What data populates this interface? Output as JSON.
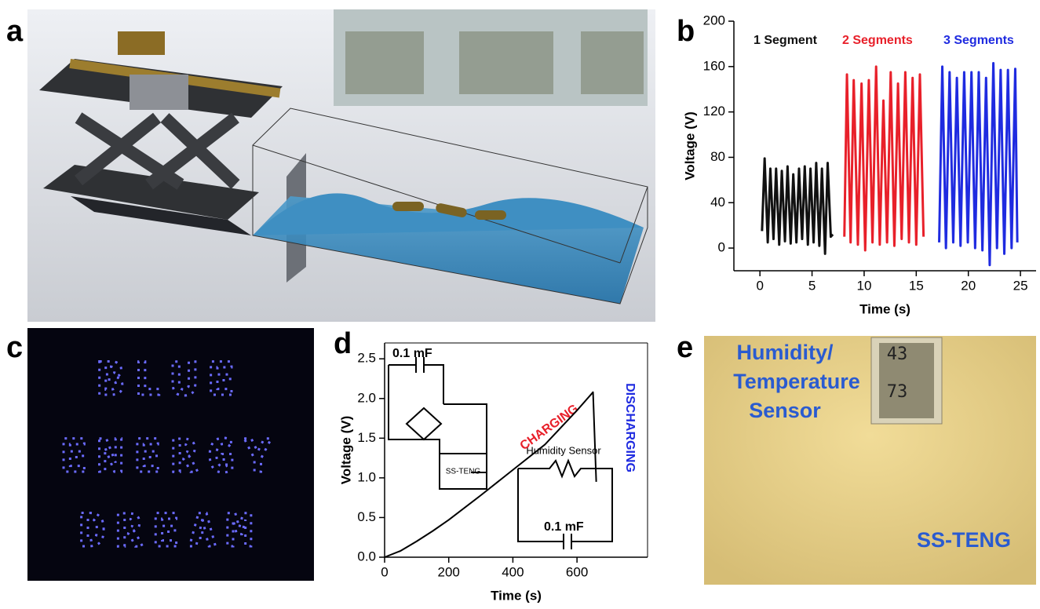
{
  "panel_labels": [
    "a",
    "b",
    "c",
    "d",
    "e"
  ],
  "panel_c": {
    "lines": [
      "BLUE",
      "ENERGY",
      "DREAM"
    ]
  },
  "panel_e": {
    "sensor_label": [
      "Humidity/",
      "Temperature",
      "Sensor"
    ],
    "teng_label": "SS-TENG",
    "display": [
      "43",
      "73"
    ]
  },
  "chart_data": [
    {
      "type": "line",
      "xlabel": "Time (s)",
      "ylabel": "Voltage (V)",
      "annotations": [
        "1 Segment",
        "2 Segments",
        "3 Segments"
      ],
      "xlim": [
        -2.5,
        26.5
      ],
      "ylim": [
        -20,
        200
      ],
      "xticks": [
        0,
        5,
        10,
        15,
        20,
        25
      ],
      "yticks": [
        0,
        40,
        80,
        120,
        160,
        200
      ],
      "series": [
        {
          "name": "1 Segment",
          "color": "#111111",
          "x": [
            0.2,
            0.45,
            0.75,
            1.0,
            1.3,
            1.55,
            1.85,
            2.1,
            2.4,
            2.65,
            2.95,
            3.2,
            3.5,
            3.75,
            4.05,
            4.3,
            4.6,
            4.85,
            5.15,
            5.4,
            5.7,
            5.95,
            6.25,
            6.5,
            6.8,
            7.0
          ],
          "values": [
            15,
            79,
            5,
            70,
            8,
            70,
            3,
            68,
            6,
            72,
            4,
            65,
            5,
            70,
            8,
            72,
            3,
            70,
            5,
            75,
            2,
            70,
            -5,
            75,
            10,
            12
          ]
        },
        {
          "name": "2 Segments",
          "color": "#e8202a",
          "x": [
            8.1,
            8.35,
            8.7,
            9.0,
            9.4,
            9.75,
            10.1,
            10.45,
            10.8,
            11.15,
            11.5,
            11.85,
            12.2,
            12.55,
            12.9,
            13.25,
            13.6,
            13.95,
            14.3,
            14.65,
            15.0,
            15.35,
            15.7
          ],
          "values": [
            10,
            153,
            5,
            148,
            3,
            145,
            -2,
            148,
            5,
            160,
            3,
            130,
            5,
            155,
            2,
            145,
            8,
            155,
            5,
            150,
            3,
            153,
            10
          ]
        },
        {
          "name": "3 Segments",
          "color": "#1f2be0",
          "x": [
            17.2,
            17.5,
            17.85,
            18.2,
            18.55,
            18.9,
            19.25,
            19.6,
            19.95,
            20.3,
            20.65,
            21.0,
            21.35,
            21.7,
            22.05,
            22.4,
            22.75,
            23.1,
            23.45,
            23.8,
            24.15,
            24.5,
            24.7
          ],
          "values": [
            5,
            160,
            0,
            155,
            5,
            150,
            2,
            155,
            5,
            155,
            0,
            155,
            -2,
            150,
            -15,
            163,
            0,
            157,
            -5,
            157,
            0,
            158,
            5
          ]
        }
      ]
    },
    {
      "type": "line",
      "xlabel": "Time (s)",
      "ylabel": "Voltage (V)",
      "annotations": [
        "CHARGING",
        "DISCHARGING",
        "Humidity Sensor",
        "0.1 mF",
        "0.1 mF",
        "SS-TENG"
      ],
      "xlim": [
        0,
        820
      ],
      "ylim": [
        0,
        2.7
      ],
      "xticks": [
        0,
        200,
        400,
        600
      ],
      "yticks": [
        {
          "value": 0,
          "label": "0.0"
        },
        0.5,
        {
          "value": 1,
          "label": "1.0"
        },
        1.5,
        {
          "value": 2,
          "label": "2.0"
        },
        2.5
      ],
      "series": [
        {
          "name": "Voltage",
          "color": "#000000",
          "x": [
            0,
            50,
            100,
            150,
            200,
            300,
            400,
            500,
            600,
            650,
            660
          ],
          "values": [
            0,
            0.08,
            0.2,
            0.33,
            0.47,
            0.78,
            1.1,
            1.42,
            1.85,
            2.08,
            0.95
          ]
        }
      ]
    }
  ]
}
